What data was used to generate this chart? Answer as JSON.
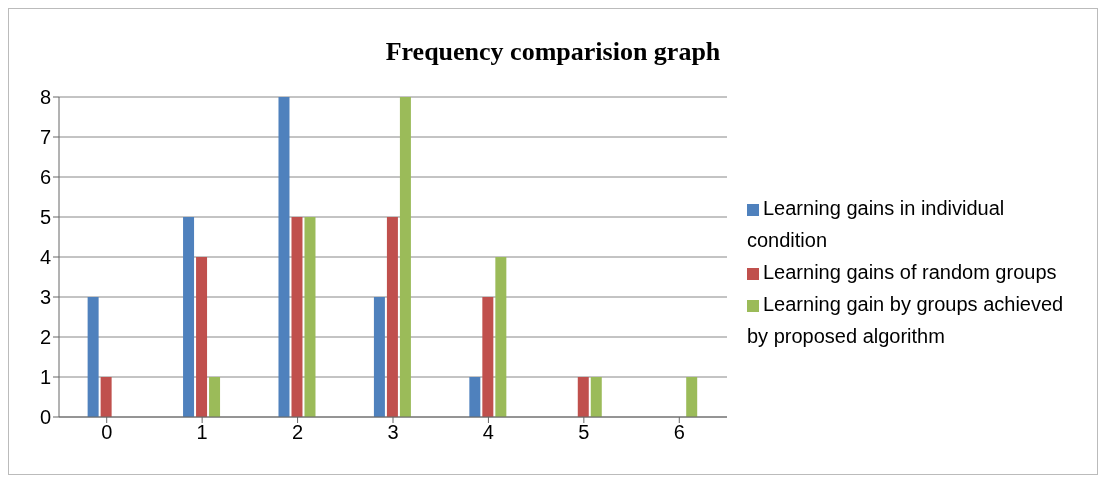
{
  "chart_data": {
    "type": "bar",
    "title": "Frequency comparision graph",
    "categories": [
      "0",
      "1",
      "2",
      "3",
      "4",
      "5",
      "6"
    ],
    "series": [
      {
        "name": "Learning gains in individual condition",
        "color": "#4f81bd",
        "values": [
          3,
          5,
          8,
          3,
          1,
          0,
          0
        ]
      },
      {
        "name": "Learning gains of random groups",
        "color": "#c0504d",
        "values": [
          1,
          4,
          5,
          5,
          3,
          1,
          0
        ]
      },
      {
        "name": "Learning gain by groups achieved by proposed algorithm",
        "color": "#9bbb59",
        "values": [
          0,
          1,
          5,
          8,
          4,
          1,
          1
        ]
      }
    ],
    "ylim": [
      0,
      8
    ],
    "yticks": [
      0,
      1,
      2,
      3,
      4,
      5,
      6,
      7,
      8
    ],
    "grid": "y",
    "legend": "right"
  }
}
